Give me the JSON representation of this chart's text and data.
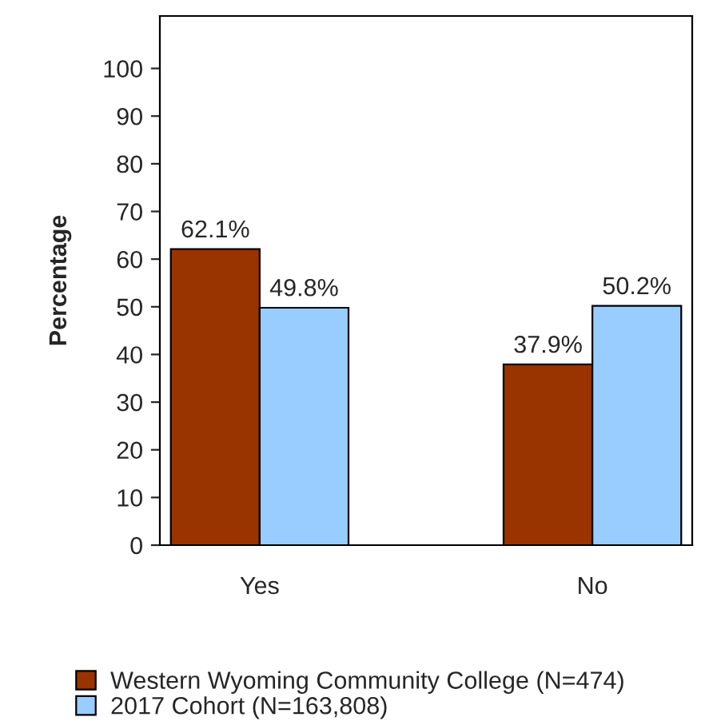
{
  "chart_data": {
    "type": "bar",
    "ylabel": "Percentage",
    "categories": [
      "Yes",
      "No"
    ],
    "series": [
      {
        "name": "Western Wyoming Community College (N=474)",
        "color": "#993300",
        "values": [
          62.1,
          37.9
        ],
        "value_labels": [
          "62.1%",
          "37.9%"
        ]
      },
      {
        "name": "2017 Cohort (N=163,808)",
        "color": "#99ccff",
        "values": [
          49.8,
          50.2
        ],
        "value_labels": [
          "49.8%",
          "50.2%"
        ]
      }
    ],
    "ylim": [
      0,
      111
    ],
    "yticks": [
      0,
      10,
      20,
      30,
      40,
      50,
      60,
      70,
      80,
      90,
      100
    ],
    "grid": false,
    "legend": "bottom"
  }
}
